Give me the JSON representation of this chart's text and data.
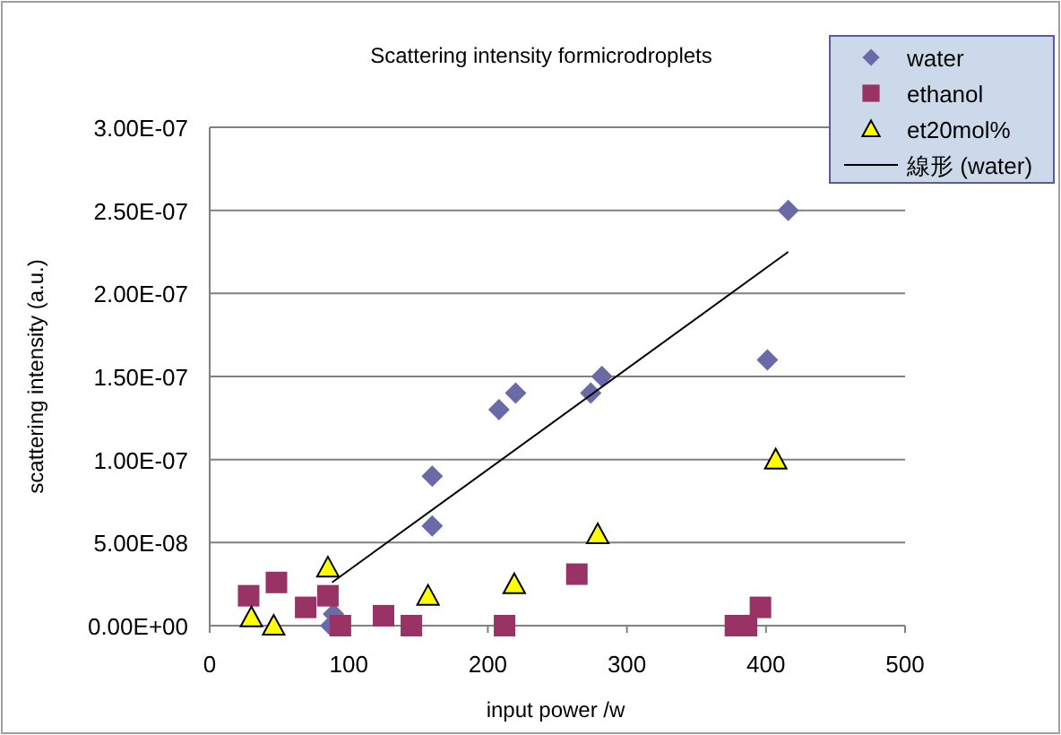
{
  "chart_data": {
    "type": "scatter",
    "title": "Scattering intensity formicrodroplets",
    "xlabel": "input power /w",
    "ylabel": "scattering intensity (a.u.)",
    "xlim": [
      0,
      500
    ],
    "xticks": [
      0,
      100,
      200,
      300,
      400,
      500
    ],
    "ylim": [
      0,
      3e-07
    ],
    "yticks": [
      {
        "value": 0,
        "label": "0.00E+00"
      },
      {
        "value": 5e-08,
        "label": "5.00E-08"
      },
      {
        "value": 1e-07,
        "label": "1.00E-07"
      },
      {
        "value": 1.5e-07,
        "label": "1.50E-07"
      },
      {
        "value": 2e-07,
        "label": "2.00E-07"
      },
      {
        "value": 2.5e-07,
        "label": "2.50E-07"
      },
      {
        "value": 3e-07,
        "label": "3.00E-07"
      }
    ],
    "grid": "y",
    "legend": "top right",
    "series": [
      {
        "name": "water",
        "marker": "diamond",
        "color": "#6a6aa8",
        "x": [
          87,
          89,
          160,
          160,
          208,
          220,
          274,
          282,
          401,
          416
        ],
        "values": [
          0,
          7e-09,
          9e-08,
          6e-08,
          1.3e-07,
          1.4e-07,
          1.4e-07,
          1.5e-07,
          1.6e-07,
          2.5e-07
        ]
      },
      {
        "name": "ethanol",
        "marker": "square",
        "color": "#993366",
        "x": [
          28,
          48,
          69,
          85,
          94,
          125,
          145,
          212,
          264,
          378,
          386,
          396
        ],
        "values": [
          1.8e-08,
          2.6e-08,
          1.1e-08,
          1.8e-08,
          0,
          6e-09,
          0,
          0,
          3.1e-08,
          0,
          0,
          1.1e-08
        ]
      },
      {
        "name": "et20mol%",
        "marker": "triangle",
        "color": "#ffff00",
        "x": [
          30,
          46,
          85,
          157,
          219,
          279,
          407
        ],
        "values": [
          5e-09,
          0,
          3.5e-08,
          1.8e-08,
          2.5e-08,
          5.5e-08,
          1e-07
        ]
      },
      {
        "name": "線形 (water)",
        "type": "line",
        "marker": "none",
        "color": "#000000",
        "x": [
          88,
          416
        ],
        "values": [
          2.6e-08,
          2.25e-07
        ]
      }
    ]
  }
}
